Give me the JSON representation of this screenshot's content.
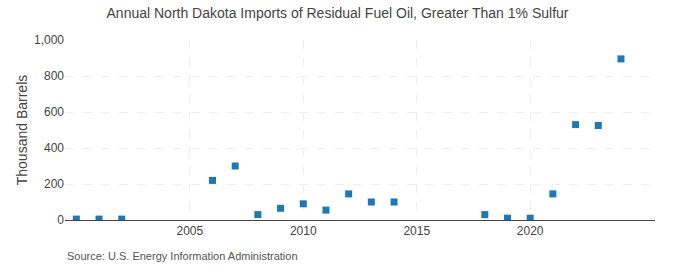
{
  "chart_data": {
    "type": "scatter",
    "title": "Annual North Dakota Imports of Residual Fuel Oil, Greater Than 1% Sulfur",
    "ylabel": "Thousand Barrels",
    "annotations": [
      "Source: U.S. Energy Information Administration"
    ],
    "x": [
      2000,
      2001,
      2002,
      2006,
      2007,
      2008,
      2009,
      2010,
      2011,
      2012,
      2013,
      2014,
      2018,
      2019,
      2020,
      2021,
      2022,
      2023,
      2024
    ],
    "values": [
      5,
      5,
      5,
      220,
      300,
      30,
      65,
      90,
      55,
      145,
      100,
      100,
      30,
      10,
      10,
      145,
      530,
      525,
      895
    ],
    "marker": "square",
    "xlim": [
      1999.5,
      2025.5
    ],
    "xticks": [
      2005,
      2010,
      2015,
      2020
    ],
    "ylim": [
      0,
      1000
    ],
    "yticks": [
      0,
      200,
      400,
      600,
      800,
      {
        "value": 1000,
        "label": "1,000"
      }
    ],
    "grid": true
  }
}
